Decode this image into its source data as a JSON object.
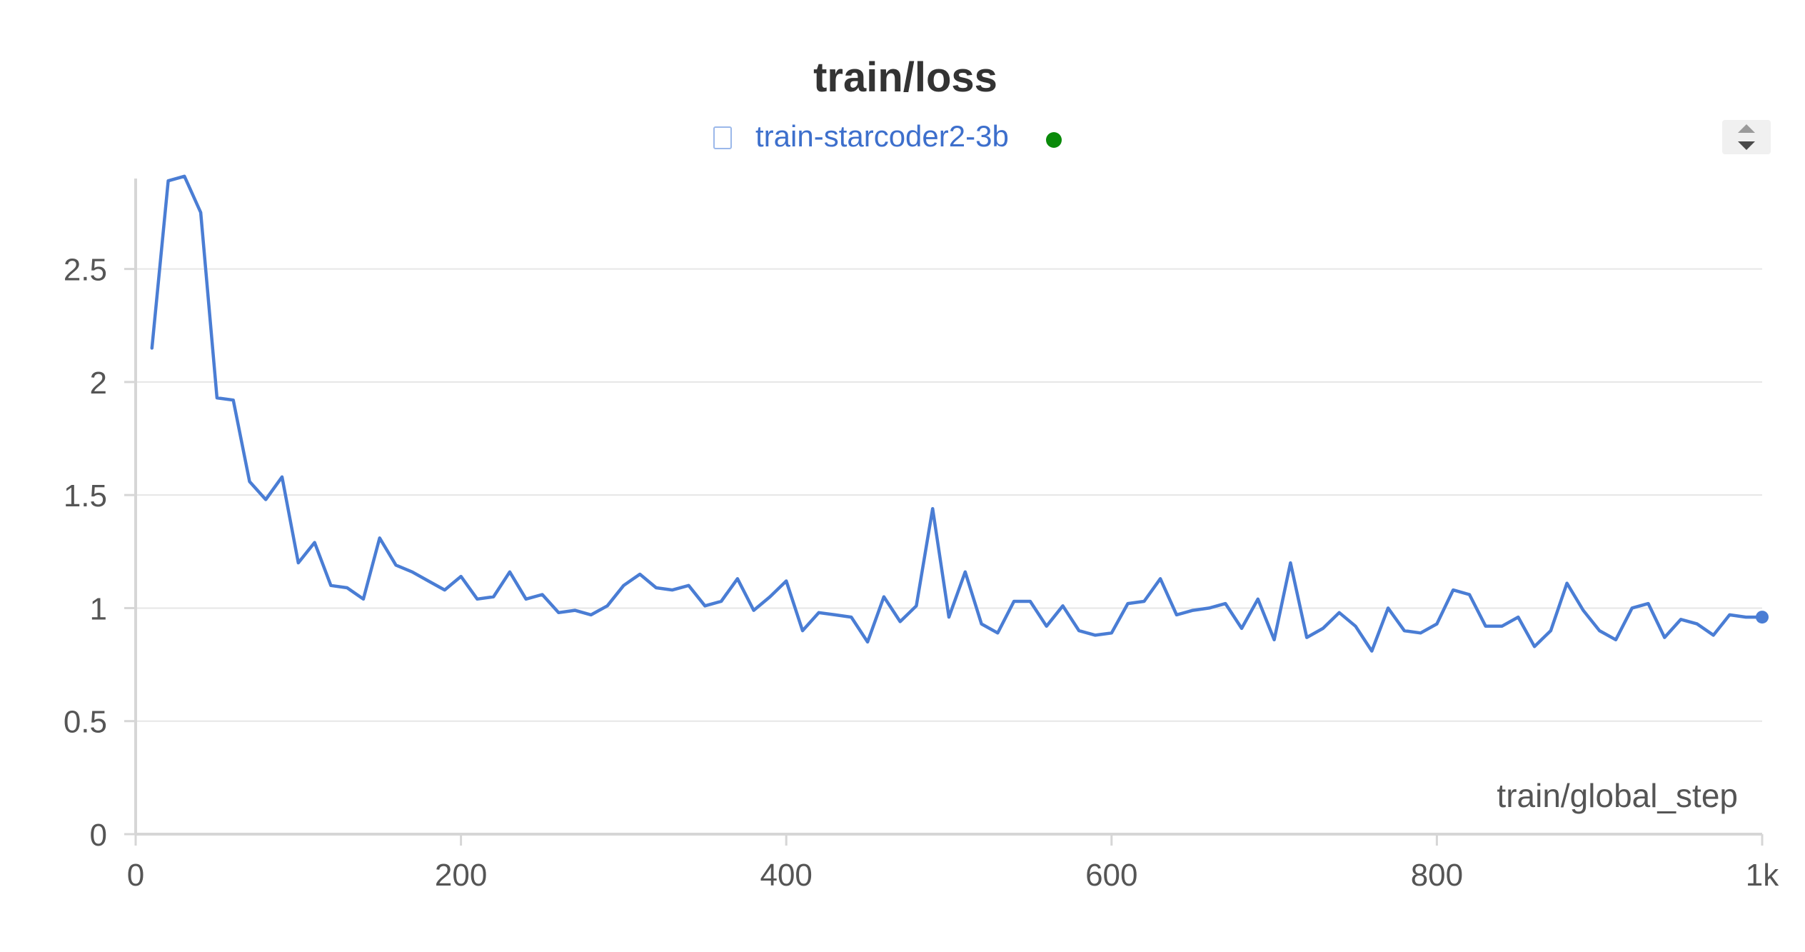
{
  "chart_data": {
    "type": "line",
    "title": "train/loss",
    "xlabel": "train/global_step",
    "ylabel": "",
    "legend": {
      "placement": "top-center",
      "entries": [
        {
          "name": "train-starcoder2-3b",
          "color": "#4A7DD4",
          "status_color": "#0A8A0A"
        }
      ]
    },
    "xlim": [
      0,
      1000
    ],
    "ylim": [
      0,
      2.9
    ],
    "x_ticks": [
      {
        "value": 0,
        "label": "0"
      },
      {
        "value": 200,
        "label": "200"
      },
      {
        "value": 400,
        "label": "400"
      },
      {
        "value": 600,
        "label": "600"
      },
      {
        "value": 800,
        "label": "800"
      },
      {
        "value": 1000,
        "label": "1k"
      }
    ],
    "y_ticks": [
      {
        "value": 0,
        "label": "0"
      },
      {
        "value": 0.5,
        "label": "0.5"
      },
      {
        "value": 1,
        "label": "1"
      },
      {
        "value": 1.5,
        "label": "1.5"
      },
      {
        "value": 2,
        "label": "2"
      },
      {
        "value": 2.5,
        "label": "2.5"
      }
    ],
    "grid": true,
    "series": [
      {
        "name": "train-starcoder2-3b",
        "color": "#4A7DD4",
        "x": [
          10,
          20,
          30,
          40,
          50,
          60,
          70,
          80,
          90,
          100,
          110,
          120,
          130,
          140,
          150,
          160,
          170,
          180,
          190,
          200,
          210,
          220,
          230,
          240,
          250,
          260,
          270,
          280,
          290,
          300,
          310,
          320,
          330,
          340,
          350,
          360,
          370,
          380,
          390,
          400,
          410,
          420,
          430,
          440,
          450,
          460,
          470,
          480,
          490,
          500,
          510,
          520,
          530,
          540,
          550,
          560,
          570,
          580,
          590,
          600,
          610,
          620,
          630,
          640,
          650,
          660,
          670,
          680,
          690,
          700,
          710,
          720,
          730,
          740,
          750,
          760,
          770,
          780,
          790,
          800,
          810,
          820,
          830,
          840,
          850,
          860,
          870,
          880,
          890,
          900,
          910,
          920,
          930,
          940,
          950,
          960,
          970,
          980,
          990,
          1000
        ],
        "y": [
          2.15,
          2.89,
          2.91,
          2.75,
          1.93,
          1.92,
          1.56,
          1.48,
          1.58,
          1.2,
          1.29,
          1.1,
          1.09,
          1.04,
          1.31,
          1.19,
          1.16,
          1.12,
          1.08,
          1.14,
          1.04,
          1.05,
          1.16,
          1.04,
          1.06,
          0.98,
          0.99,
          0.97,
          1.01,
          1.1,
          1.15,
          1.09,
          1.08,
          1.1,
          1.01,
          1.03,
          1.13,
          0.99,
          1.05,
          1.12,
          0.9,
          0.98,
          0.97,
          0.96,
          0.85,
          1.05,
          0.94,
          1.01,
          1.44,
          0.96,
          1.16,
          0.93,
          0.89,
          1.03,
          1.03,
          0.92,
          1.01,
          0.9,
          0.88,
          0.89,
          1.02,
          1.03,
          1.13,
          0.97,
          0.99,
          1.0,
          1.02,
          0.91,
          1.04,
          0.86,
          1.2,
          0.87,
          0.91,
          0.98,
          0.92,
          0.81,
          1.0,
          0.9,
          0.89,
          0.93,
          1.08,
          1.06,
          0.92,
          0.92,
          0.96,
          0.83,
          0.9,
          1.11,
          0.99,
          0.9,
          0.86,
          1.0,
          1.02,
          0.87,
          0.95,
          0.93,
          0.88,
          0.97,
          0.96,
          0.96
        ]
      }
    ]
  }
}
